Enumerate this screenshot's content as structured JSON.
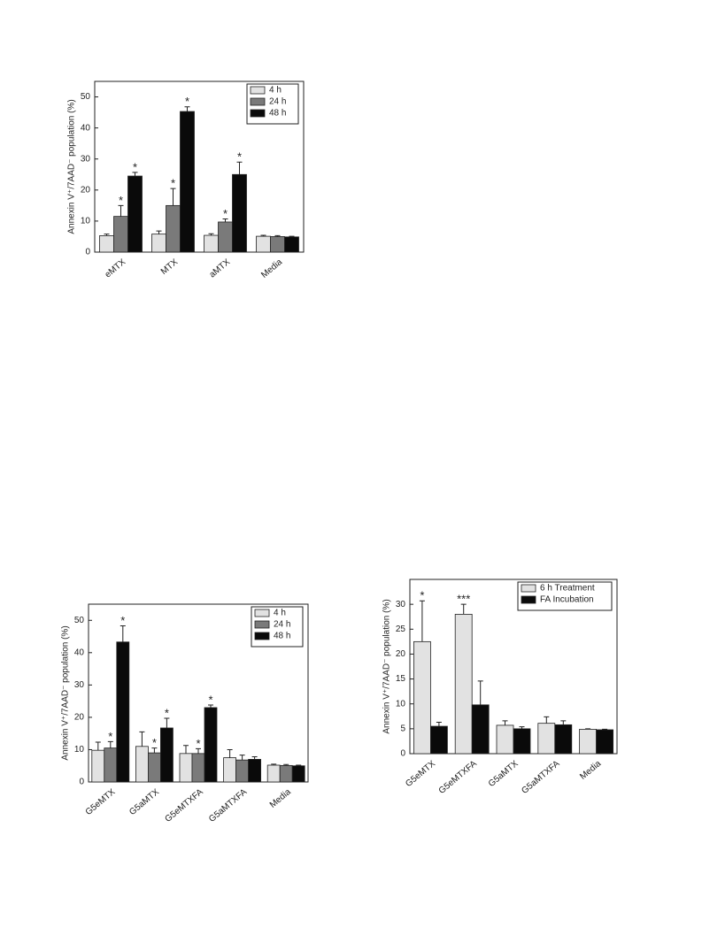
{
  "chart_data": [
    {
      "type": "bar",
      "y_label": "Annexin V⁺/7AAD⁻ population (%)",
      "categories": [
        "eMTX",
        "MTX",
        "aMTX",
        "Media"
      ],
      "ylim": [
        0,
        55
      ],
      "yticks": [
        0,
        10,
        20,
        30,
        40,
        50
      ],
      "legend": "upper right",
      "series": [
        {
          "name": "4 h",
          "color": "#e2e2e2",
          "values": [
            5.3,
            5.8,
            5.4,
            5.1
          ],
          "errors": [
            0.5,
            1,
            0.5,
            0.3
          ],
          "labels": [
            null,
            null,
            null,
            null
          ]
        },
        {
          "name": "24 h",
          "color": "#7a7a7a",
          "values": [
            11.5,
            15,
            9.7,
            5
          ],
          "errors": [
            3.5,
            5.5,
            1,
            0.3
          ],
          "labels": [
            "*",
            "*",
            "*",
            null
          ]
        },
        {
          "name": "48 h",
          "color": "#0a0a0a",
          "values": [
            24.5,
            45.3,
            25,
            4.9
          ],
          "errors": [
            1.2,
            1.5,
            4,
            0.2
          ],
          "labels": [
            "*",
            "*",
            "*",
            null
          ]
        }
      ]
    },
    {
      "type": "bar",
      "y_label": "Annexin V⁺/7AAD⁻ population (%)",
      "categories": [
        "G5eMTX",
        "G5aMTX",
        "G5eMTXFA",
        "G5aMTXFA",
        "Media"
      ],
      "ylim": [
        0,
        55
      ],
      "yticks": [
        0,
        10,
        20,
        30,
        40,
        50
      ],
      "legend": "upper right",
      "series": [
        {
          "name": "4 h",
          "color": "#e2e2e2",
          "values": [
            9.8,
            11,
            8.8,
            7.5,
            5.2
          ],
          "errors": [
            2.5,
            4.5,
            2.5,
            2.5,
            0.3
          ],
          "labels": [
            null,
            null,
            null,
            null,
            null
          ]
        },
        {
          "name": "24 h",
          "color": "#7a7a7a",
          "values": [
            10.5,
            9,
            8.8,
            6.8,
            5.1
          ],
          "errors": [
            2,
            1.5,
            1.5,
            1.5,
            0.3
          ],
          "labels": [
            "*",
            "*",
            "*",
            null,
            null
          ]
        },
        {
          "name": "48 h",
          "color": "#0a0a0a",
          "values": [
            43.3,
            16.7,
            23,
            7,
            5
          ],
          "errors": [
            5,
            3,
            0.8,
            0.8,
            0.2
          ],
          "labels": [
            "*",
            "*",
            "*",
            null,
            null
          ]
        }
      ]
    },
    {
      "type": "bar",
      "y_label": "Annexin V⁺/7AAD⁻ population (%)",
      "categories": [
        "G5eMTX",
        "G5eMTXFA",
        "G5aMTX",
        "G5aMTXFA",
        "Media"
      ],
      "ylim": [
        0,
        35
      ],
      "yticks": [
        0,
        5,
        10,
        15,
        20,
        25,
        30
      ],
      "legend": "upper right",
      "series": [
        {
          "name": "6 h Treatment",
          "color": "#e2e2e2",
          "values": [
            22.5,
            28,
            5.7,
            6.1,
            4.9
          ],
          "errors": [
            8.2,
            2,
            0.9,
            1.3,
            0.1
          ],
          "labels": [
            "*",
            "***",
            null,
            null,
            null
          ]
        },
        {
          "name": "FA Incubation",
          "color": "#0a0a0a",
          "values": [
            5.5,
            9.8,
            5,
            5.8,
            4.8
          ],
          "errors": [
            0.8,
            4.8,
            0.4,
            0.8,
            0.1
          ],
          "labels": [
            null,
            null,
            null,
            null,
            null
          ]
        }
      ]
    }
  ]
}
